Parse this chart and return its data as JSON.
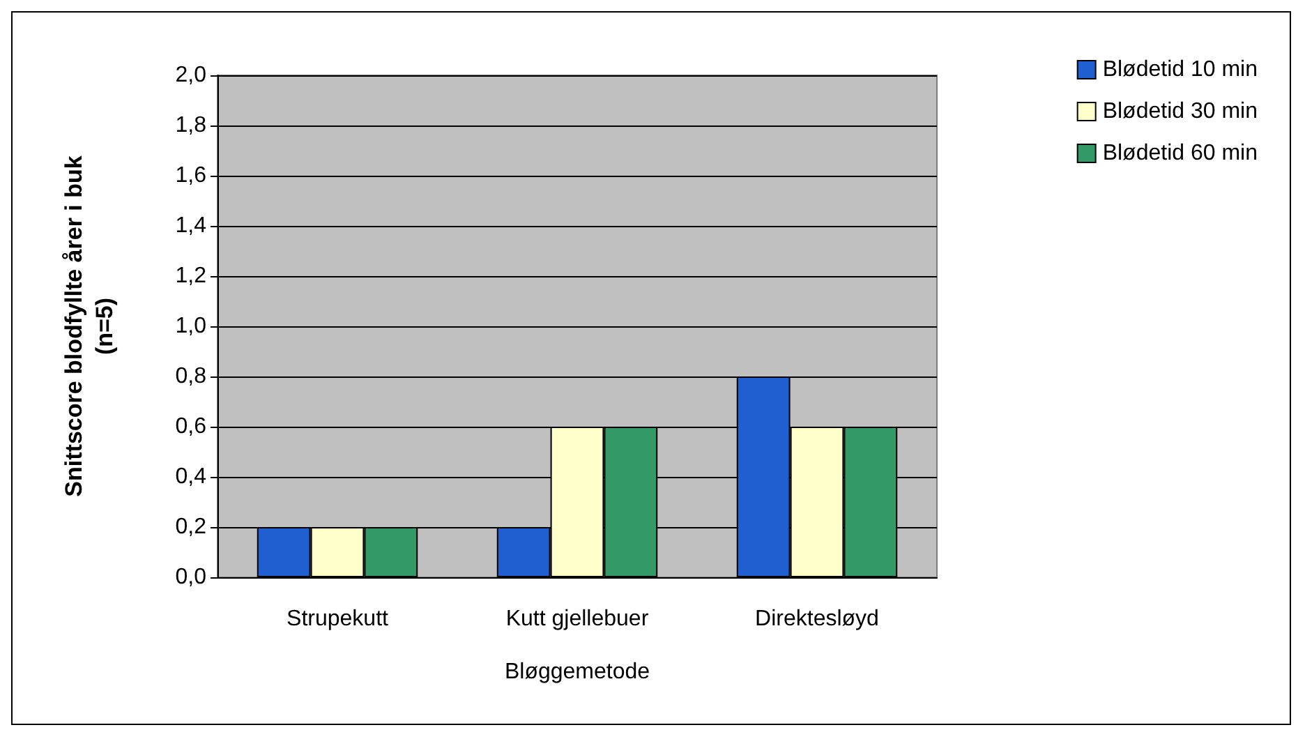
{
  "chart_data": {
    "type": "bar",
    "xlabel": "Bløggemetode",
    "ylabel": "Snittscore blodfyllte årer i buk\n(n=5)",
    "categories": [
      "Strupekutt",
      "Kutt gjellebuer",
      "Direktesløyd"
    ],
    "series": [
      {
        "name": "Blødetid 10 min",
        "color": "#1f5fcf",
        "values": [
          0.2,
          0.2,
          0.8
        ]
      },
      {
        "name": "Blødetid 30 min",
        "color": "#ffffcc",
        "values": [
          0.2,
          0.6,
          0.6
        ]
      },
      {
        "name": "Blødetid 60 min",
        "color": "#339966",
        "values": [
          0.2,
          0.6,
          0.6
        ]
      }
    ],
    "ylim": [
      0,
      2
    ],
    "yticks": [
      {
        "value": 0,
        "label": "0,0"
      },
      {
        "value": 0.2,
        "label": "0,2"
      },
      {
        "value": 0.4,
        "label": "0,4"
      },
      {
        "value": 0.6,
        "label": "0,6"
      },
      {
        "value": 0.8,
        "label": "0,8"
      },
      {
        "value": 1,
        "label": "1,0"
      },
      {
        "value": 1.2,
        "label": "1,2"
      },
      {
        "value": 1.4,
        "label": "1,4"
      },
      {
        "value": 1.6,
        "label": "1,6"
      },
      {
        "value": 1.8,
        "label": "1,8"
      },
      {
        "value": 2,
        "label": "2,0"
      }
    ],
    "grid": "y",
    "legend": "top right"
  }
}
